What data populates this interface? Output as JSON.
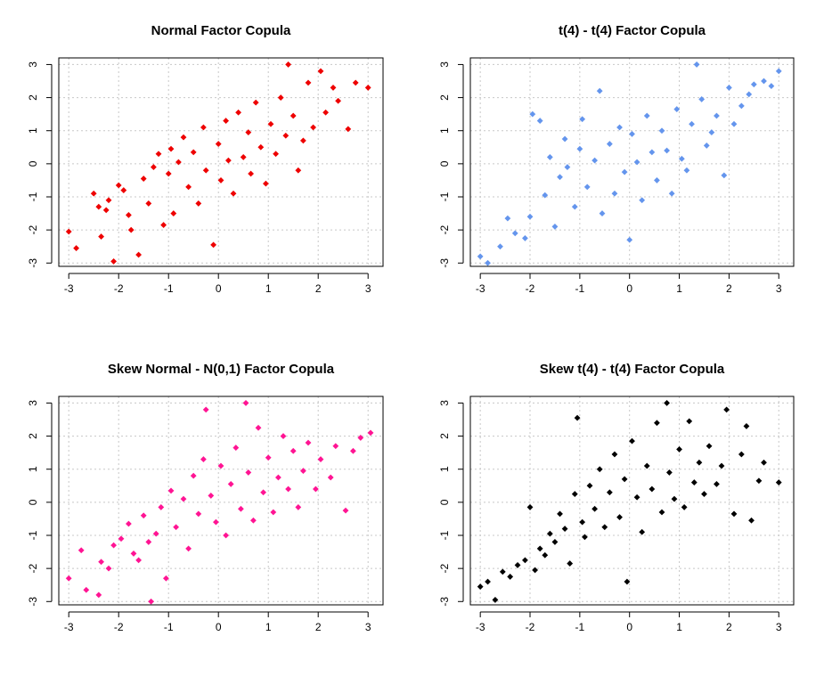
{
  "chart_data": [
    {
      "type": "scatter",
      "title": "Normal Factor Copula",
      "xlabel": "",
      "ylabel": "",
      "xlim": [
        -3.2,
        3.3
      ],
      "ylim": [
        -3.1,
        3.2
      ],
      "xticks": [
        -3,
        -2,
        -1,
        0,
        1,
        2,
        3
      ],
      "yticks": [
        -3,
        -2,
        -1,
        0,
        1,
        2,
        3
      ],
      "grid": true,
      "marker": "diamond",
      "color": "#ee0000",
      "points": [
        [
          -3.0,
          -2.05
        ],
        [
          -2.85,
          -2.55
        ],
        [
          -2.1,
          -2.95
        ],
        [
          -2.35,
          -2.2
        ],
        [
          -2.5,
          -0.9
        ],
        [
          -2.4,
          -1.3
        ],
        [
          -2.25,
          -1.4
        ],
        [
          -2.2,
          -1.1
        ],
        [
          -2.0,
          -0.65
        ],
        [
          -1.9,
          -0.8
        ],
        [
          -1.8,
          -1.55
        ],
        [
          -1.75,
          -2.0
        ],
        [
          -1.6,
          -2.75
        ],
        [
          -1.5,
          -0.45
        ],
        [
          -1.4,
          -1.2
        ],
        [
          -1.3,
          -0.1
        ],
        [
          -1.2,
          0.3
        ],
        [
          -1.1,
          -1.85
        ],
        [
          -1.0,
          -0.3
        ],
        [
          -0.95,
          0.45
        ],
        [
          -0.9,
          -1.5
        ],
        [
          -0.8,
          0.05
        ],
        [
          -0.7,
          0.8
        ],
        [
          -0.6,
          -0.7
        ],
        [
          -0.5,
          0.35
        ],
        [
          -0.4,
          -1.2
        ],
        [
          -0.3,
          1.1
        ],
        [
          -0.25,
          -0.2
        ],
        [
          -0.1,
          -2.45
        ],
        [
          0.0,
          0.6
        ],
        [
          0.05,
          -0.5
        ],
        [
          0.15,
          1.3
        ],
        [
          0.2,
          0.1
        ],
        [
          0.3,
          -0.9
        ],
        [
          0.4,
          1.55
        ],
        [
          0.5,
          0.2
        ],
        [
          0.6,
          0.95
        ],
        [
          0.65,
          -0.3
        ],
        [
          0.75,
          1.85
        ],
        [
          0.85,
          0.5
        ],
        [
          0.95,
          -0.6
        ],
        [
          1.05,
          1.2
        ],
        [
          1.15,
          0.3
        ],
        [
          1.25,
          2.0
        ],
        [
          1.35,
          0.85
        ],
        [
          1.4,
          3.0
        ],
        [
          1.5,
          1.45
        ],
        [
          1.6,
          -0.2
        ],
        [
          1.7,
          0.7
        ],
        [
          1.8,
          2.45
        ],
        [
          1.9,
          1.1
        ],
        [
          2.05,
          2.8
        ],
        [
          2.15,
          1.55
        ],
        [
          2.3,
          2.3
        ],
        [
          2.4,
          1.9
        ],
        [
          2.6,
          1.05
        ],
        [
          2.75,
          2.45
        ],
        [
          3.0,
          2.3
        ]
      ]
    },
    {
      "type": "scatter",
      "title": "t(4) - t(4) Factor Copula",
      "xlabel": "",
      "ylabel": "",
      "xlim": [
        -3.2,
        3.3
      ],
      "ylim": [
        -3.1,
        3.2
      ],
      "xticks": [
        -3,
        -2,
        -1,
        0,
        1,
        2,
        3
      ],
      "yticks": [
        -3,
        -2,
        -1,
        0,
        1,
        2,
        3
      ],
      "grid": true,
      "marker": "diamond",
      "color": "#6495ed",
      "points": [
        [
          -3.0,
          -2.8
        ],
        [
          -2.85,
          -3.0
        ],
        [
          -2.6,
          -2.5
        ],
        [
          -2.45,
          -1.65
        ],
        [
          -2.3,
          -2.1
        ],
        [
          -2.1,
          -2.25
        ],
        [
          -2.0,
          -1.6
        ],
        [
          -1.95,
          1.5
        ],
        [
          -1.8,
          1.3
        ],
        [
          -1.7,
          -0.95
        ],
        [
          -1.6,
          0.2
        ],
        [
          -1.5,
          -1.9
        ],
        [
          -1.4,
          -0.4
        ],
        [
          -1.3,
          0.75
        ],
        [
          -1.25,
          -0.1
        ],
        [
          -1.1,
          -1.3
        ],
        [
          -1.0,
          0.45
        ],
        [
          -0.95,
          1.35
        ],
        [
          -0.85,
          -0.7
        ],
        [
          -0.7,
          0.1
        ],
        [
          -0.6,
          2.2
        ],
        [
          -0.55,
          -1.5
        ],
        [
          -0.4,
          0.6
        ],
        [
          -0.3,
          -0.9
        ],
        [
          -0.2,
          1.1
        ],
        [
          -0.1,
          -0.25
        ],
        [
          0.0,
          -2.3
        ],
        [
          0.05,
          0.9
        ],
        [
          0.15,
          0.05
        ],
        [
          0.25,
          -1.1
        ],
        [
          0.35,
          1.45
        ],
        [
          0.45,
          0.35
        ],
        [
          0.55,
          -0.5
        ],
        [
          0.65,
          1.0
        ],
        [
          0.75,
          0.4
        ],
        [
          0.85,
          -0.9
        ],
        [
          0.95,
          1.65
        ],
        [
          1.05,
          0.15
        ],
        [
          1.15,
          -0.2
        ],
        [
          1.25,
          1.2
        ],
        [
          1.35,
          3.0
        ],
        [
          1.45,
          1.95
        ],
        [
          1.55,
          0.55
        ],
        [
          1.65,
          0.95
        ],
        [
          1.75,
          1.45
        ],
        [
          1.9,
          -0.35
        ],
        [
          2.0,
          2.3
        ],
        [
          2.1,
          1.2
        ],
        [
          2.25,
          1.75
        ],
        [
          2.4,
          2.1
        ],
        [
          2.5,
          2.4
        ],
        [
          2.7,
          2.5
        ],
        [
          2.85,
          2.35
        ],
        [
          3.0,
          2.8
        ]
      ]
    },
    {
      "type": "scatter",
      "title": "Skew Normal - N(0,1) Factor Copula",
      "xlabel": "",
      "ylabel": "",
      "xlim": [
        -3.2,
        3.3
      ],
      "ylim": [
        -3.1,
        3.2
      ],
      "xticks": [
        -3,
        -2,
        -1,
        0,
        1,
        2,
        3
      ],
      "yticks": [
        -3,
        -2,
        -1,
        0,
        1,
        2,
        3
      ],
      "grid": true,
      "marker": "diamond",
      "color": "#ff1493",
      "points": [
        [
          -3.0,
          -2.3
        ],
        [
          -2.75,
          -1.45
        ],
        [
          -2.65,
          -2.65
        ],
        [
          -2.4,
          -2.8
        ],
        [
          -2.35,
          -1.8
        ],
        [
          -2.2,
          -2.0
        ],
        [
          -2.1,
          -1.3
        ],
        [
          -1.95,
          -1.1
        ],
        [
          -1.8,
          -0.65
        ],
        [
          -1.7,
          -1.55
        ],
        [
          -1.6,
          -1.75
        ],
        [
          -1.5,
          -0.4
        ],
        [
          -1.4,
          -1.2
        ],
        [
          -1.35,
          -3.0
        ],
        [
          -1.25,
          -0.95
        ],
        [
          -1.15,
          -0.15
        ],
        [
          -1.05,
          -2.3
        ],
        [
          -0.95,
          0.35
        ],
        [
          -0.85,
          -0.75
        ],
        [
          -0.7,
          0.1
        ],
        [
          -0.6,
          -1.4
        ],
        [
          -0.5,
          0.8
        ],
        [
          -0.4,
          -0.35
        ],
        [
          -0.3,
          1.3
        ],
        [
          -0.25,
          2.8
        ],
        [
          -0.15,
          0.2
        ],
        [
          -0.05,
          -0.6
        ],
        [
          0.05,
          1.1
        ],
        [
          0.15,
          -1.0
        ],
        [
          0.25,
          0.55
        ],
        [
          0.35,
          1.65
        ],
        [
          0.45,
          -0.2
        ],
        [
          0.55,
          3.0
        ],
        [
          0.6,
          0.9
        ],
        [
          0.7,
          -0.55
        ],
        [
          0.8,
          2.25
        ],
        [
          0.9,
          0.3
        ],
        [
          1.0,
          1.35
        ],
        [
          1.1,
          -0.3
        ],
        [
          1.2,
          0.75
        ],
        [
          1.3,
          2.0
        ],
        [
          1.4,
          0.4
        ],
        [
          1.5,
          1.55
        ],
        [
          1.6,
          -0.15
        ],
        [
          1.7,
          0.95
        ],
        [
          1.8,
          1.8
        ],
        [
          1.95,
          0.4
        ],
        [
          2.05,
          1.3
        ],
        [
          2.25,
          0.75
        ],
        [
          2.35,
          1.7
        ],
        [
          2.55,
          -0.25
        ],
        [
          2.7,
          1.55
        ],
        [
          2.85,
          1.95
        ],
        [
          3.05,
          2.1
        ]
      ]
    },
    {
      "type": "scatter",
      "title": "Skew t(4) - t(4) Factor Copula",
      "xlabel": "",
      "ylabel": "",
      "xlim": [
        -3.2,
        3.3
      ],
      "ylim": [
        -3.1,
        3.2
      ],
      "xticks": [
        -3,
        -2,
        -1,
        0,
        1,
        2,
        3
      ],
      "yticks": [
        -3,
        -2,
        -1,
        0,
        1,
        2,
        3
      ],
      "grid": true,
      "marker": "diamond",
      "color": "#000000",
      "points": [
        [
          -3.0,
          -2.55
        ],
        [
          -2.85,
          -2.4
        ],
        [
          -2.7,
          -2.95
        ],
        [
          -2.55,
          -2.1
        ],
        [
          -2.4,
          -2.25
        ],
        [
          -2.25,
          -1.9
        ],
        [
          -2.1,
          -1.75
        ],
        [
          -2.0,
          -0.15
        ],
        [
          -1.9,
          -2.05
        ],
        [
          -1.8,
          -1.4
        ],
        [
          -1.7,
          -1.6
        ],
        [
          -1.6,
          -0.95
        ],
        [
          -1.5,
          -1.2
        ],
        [
          -1.4,
          -0.35
        ],
        [
          -1.3,
          -0.8
        ],
        [
          -1.2,
          -1.85
        ],
        [
          -1.1,
          0.25
        ],
        [
          -1.05,
          2.55
        ],
        [
          -0.95,
          -0.6
        ],
        [
          -0.9,
          -1.05
        ],
        [
          -0.8,
          0.5
        ],
        [
          -0.7,
          -0.2
        ],
        [
          -0.6,
          1.0
        ],
        [
          -0.5,
          -0.75
        ],
        [
          -0.4,
          0.3
        ],
        [
          -0.3,
          1.45
        ],
        [
          -0.2,
          -0.45
        ],
        [
          -0.1,
          0.7
        ],
        [
          -0.05,
          -2.4
        ],
        [
          0.05,
          1.85
        ],
        [
          0.15,
          0.15
        ],
        [
          0.25,
          -0.9
        ],
        [
          0.35,
          1.1
        ],
        [
          0.45,
          0.4
        ],
        [
          0.55,
          2.4
        ],
        [
          0.65,
          -0.3
        ],
        [
          0.75,
          3.0
        ],
        [
          0.8,
          0.9
        ],
        [
          0.9,
          0.1
        ],
        [
          1.0,
          1.6
        ],
        [
          1.1,
          -0.15
        ],
        [
          1.2,
          2.45
        ],
        [
          1.3,
          0.6
        ],
        [
          1.4,
          1.2
        ],
        [
          1.5,
          0.25
        ],
        [
          1.6,
          1.7
        ],
        [
          1.75,
          0.55
        ],
        [
          1.85,
          1.1
        ],
        [
          1.95,
          2.8
        ],
        [
          2.1,
          -0.35
        ],
        [
          2.25,
          1.45
        ],
        [
          2.35,
          2.3
        ],
        [
          2.45,
          -0.55
        ],
        [
          2.6,
          0.65
        ],
        [
          2.7,
          1.2
        ],
        [
          3.0,
          0.6
        ]
      ]
    }
  ]
}
